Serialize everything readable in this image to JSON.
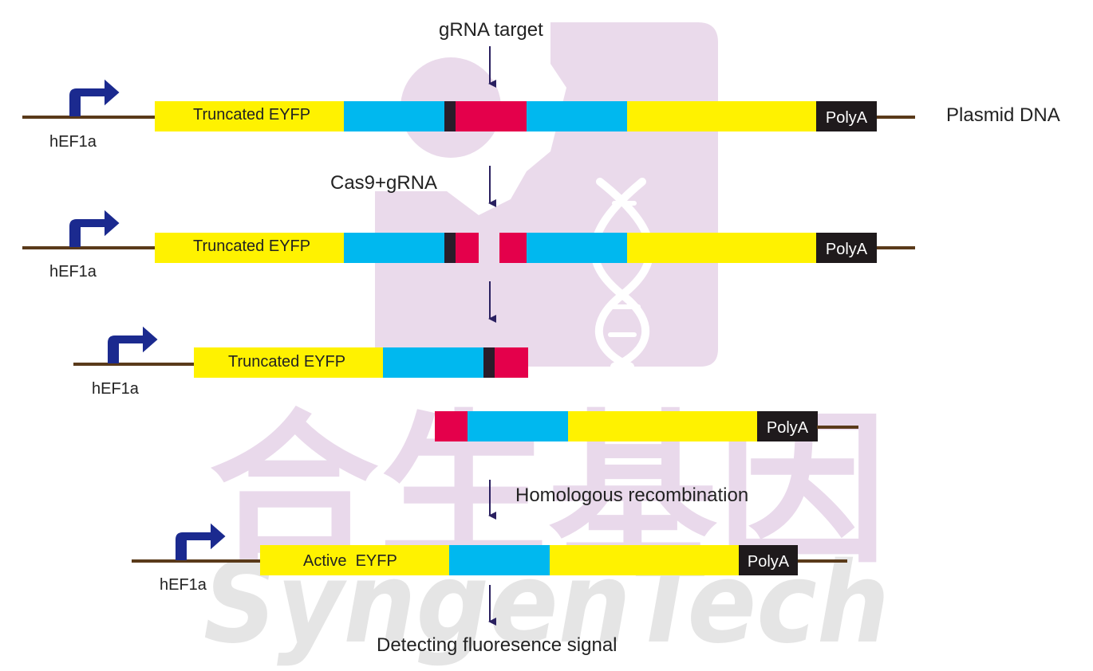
{
  "labels": {
    "grna_target": "gRNA target",
    "plasmid_dna": "Plasmid DNA",
    "cas9_grna": "Cas9+gRNA",
    "homologous_recombination": "Homologous recombination",
    "detecting_signal": "Detecting fluoresence signal"
  },
  "constructs": {
    "row1": {
      "promoter": "hEF1a",
      "gene": "Truncated EYFP",
      "terminator": "PolyA"
    },
    "row2": {
      "promoter": "hEF1a",
      "gene": "Truncated EYFP",
      "terminator": "PolyA"
    },
    "row3": {
      "promoter": "hEF1a",
      "gene": "Truncated EYFP"
    },
    "row4": {
      "terminator": "PolyA"
    },
    "row5": {
      "promoter": "hEF1a",
      "gene": "Active  EYFP",
      "terminator": "PolyA"
    }
  },
  "watermark": {
    "cn": "合生基因",
    "en": "SyngenTech"
  },
  "colors": {
    "eyfp": "#fff200",
    "homology": "#00b8ef",
    "target": "#e4004b",
    "pam": "#2a1c2a",
    "polya": "#1f1a1c",
    "backbone": "#5a3a1a",
    "promoter_arrow": "#1b2a8f",
    "flow_arrow": "#2a2060",
    "watermark": "#e6d3e8"
  }
}
